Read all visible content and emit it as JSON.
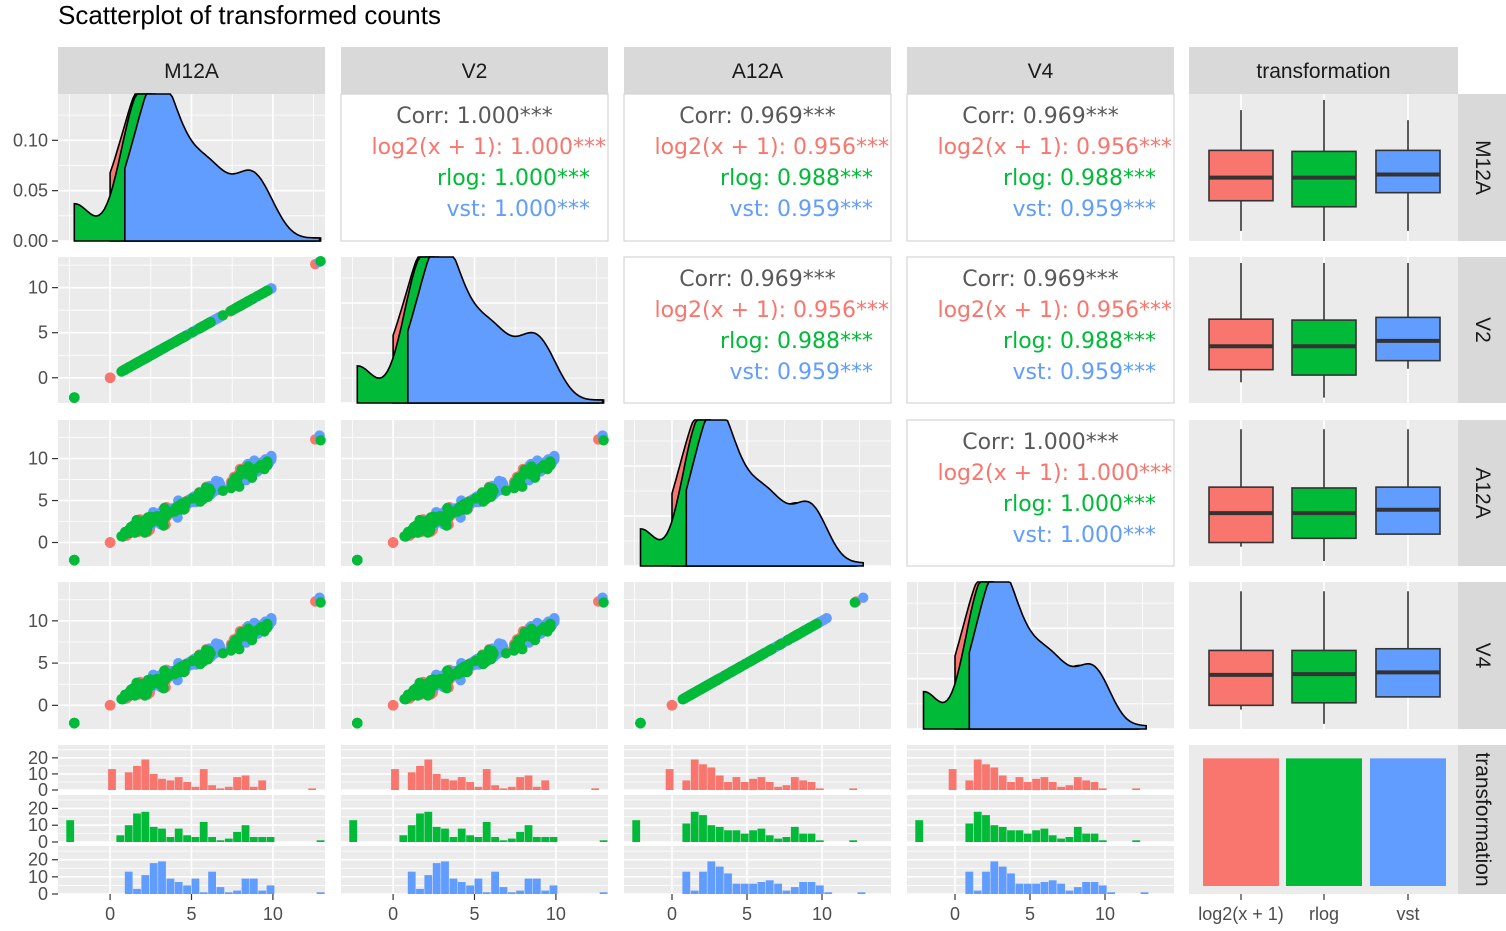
{
  "colors": {
    "log2": "#F8766D",
    "rlog": "#00BA38",
    "vst": "#619CFF",
    "panel_bg": "#EBEBEB",
    "strip_bg": "#D9D9D9",
    "corr_all": "#595959"
  },
  "chart_data": {
    "type": "scatter-matrix",
    "title": "Scatterplot of transformed counts",
    "variables": [
      "M12A",
      "V2",
      "A12A",
      "V4",
      "transformation"
    ],
    "row_labels": [
      "M12A",
      "V2",
      "A12A",
      "V4",
      "transformation"
    ],
    "groups": [
      "log2(x + 1)",
      "rlog",
      "vst"
    ],
    "x_ticks": {
      "M12A": [
        0,
        5,
        10
      ],
      "V2": [
        0,
        5,
        10
      ],
      "A12A": [
        0,
        5,
        10
      ],
      "V4": [
        0,
        5,
        10
      ],
      "transformation": [
        "log2(x + 1)",
        "rlog",
        "vst"
      ]
    },
    "y_ticks": {
      "M12A": [
        "0.00",
        "0.05",
        "0.10"
      ],
      "V2": [
        "0",
        "5",
        "10"
      ],
      "A12A": [
        "0",
        "5",
        "10"
      ],
      "V4": [
        "0",
        "5",
        "10"
      ],
      "transformation": [
        "0",
        "10",
        "20"
      ]
    },
    "x_ranges": {
      "M12A": [
        -3.2,
        13.2
      ],
      "V2": [
        -3.2,
        13.2
      ],
      "A12A": [
        -3.2,
        14.6
      ],
      "V4": [
        -3.2,
        14.6
      ]
    },
    "correlations": [
      {
        "pair": [
          "V2",
          "M12A"
        ],
        "corr": "Corr: 1.000***",
        "log2": "log2(x + 1): 1.000***",
        "rlog": "rlog: 1.000***",
        "vst": "vst: 1.000***"
      },
      {
        "pair": [
          "A12A",
          "M12A"
        ],
        "corr": "Corr: 0.969***",
        "log2": "log2(x + 1): 0.956***",
        "rlog": "rlog: 0.988***",
        "vst": "vst: 0.959***"
      },
      {
        "pair": [
          "V4",
          "M12A"
        ],
        "corr": "Corr: 0.969***",
        "log2": "log2(x + 1): 0.956***",
        "rlog": "rlog: 0.988***",
        "vst": "vst: 0.959***"
      },
      {
        "pair": [
          "A12A",
          "V2"
        ],
        "corr": "Corr: 0.969***",
        "log2": "log2(x + 1): 0.956***",
        "rlog": "rlog: 0.988***",
        "vst": "vst: 0.959***"
      },
      {
        "pair": [
          "V4",
          "V2"
        ],
        "corr": "Corr: 0.969***",
        "log2": "log2(x + 1): 0.956***",
        "rlog": "rlog: 0.988***",
        "vst": "vst: 0.959***"
      },
      {
        "pair": [
          "V4",
          "A12A"
        ],
        "corr": "Corr: 1.000***",
        "log2": "log2(x + 1): 1.000***",
        "rlog": "rlog: 1.000***",
        "vst": "vst: 1.000***"
      }
    ],
    "boxplots": {
      "M12A": {
        "log2(x + 1)": [
          0.0,
          0.03,
          0.053,
          0.08,
          0.12
        ],
        "rlog": [
          -0.01,
          0.024,
          0.053,
          0.079,
          0.13
        ],
        "vst": [
          0.0,
          0.038,
          0.056,
          0.08,
          0.11
        ]
      },
      "V2": {
        "log2(x + 1)": [
          -0.5,
          0.9,
          3.5,
          6.5,
          13.2
        ],
        "rlog": [
          -2.2,
          0.3,
          3.5,
          6.4,
          13.2
        ],
        "vst": [
          1.0,
          1.9,
          4.1,
          6.7,
          13.2
        ]
      },
      "A12A": {
        "log2(x + 1)": [
          -0.5,
          0.0,
          3.5,
          6.6,
          13.5
        ],
        "rlog": [
          -2.2,
          0.5,
          3.5,
          6.5,
          13.5
        ],
        "vst": [
          1.0,
          1.0,
          3.9,
          6.6,
          13.5
        ]
      },
      "V4": {
        "log2(x + 1)": [
          -0.5,
          0.0,
          3.6,
          6.5,
          13.5
        ],
        "rlog": [
          -2.2,
          0.3,
          3.7,
          6.5,
          13.5
        ],
        "vst": [
          1.0,
          1.0,
          3.9,
          6.7,
          13.5
        ]
      }
    },
    "bar_counts": {
      "log2(x + 1)": 52,
      "rlog": 52,
      "vst": 52
    }
  }
}
